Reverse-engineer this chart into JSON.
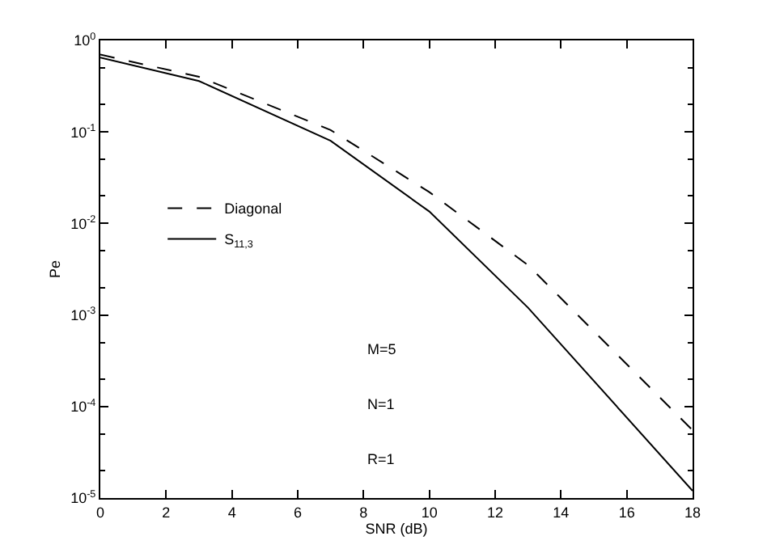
{
  "chart_data": {
    "type": "line",
    "xlabel": "SNR (dB)",
    "ylabel": "Pe",
    "x": [
      0,
      3,
      7,
      10,
      13,
      18
    ],
    "series": [
      {
        "name": "Diagonal",
        "color": "#000000",
        "line_style": "dashed",
        "values": [
          0.7,
          0.4,
          0.105,
          0.022,
          0.0035,
          5.5e-05
        ]
      },
      {
        "name": "S$_{11,3}$",
        "color": "#000000",
        "line_style": "solid",
        "values": [
          0.65,
          0.36,
          0.08,
          0.0135,
          0.0012,
          1.2e-05
        ]
      }
    ],
    "xlim": [
      0,
      18
    ],
    "xticks": [
      0,
      2,
      4,
      6,
      8,
      10,
      12,
      14,
      16,
      18
    ],
    "ylim": [
      1e-05,
      1
    ],
    "log": true,
    "yticks": [
      {
        "value": 1e-05,
        "label": "10$^{-5}$"
      },
      {
        "value": 0.0001,
        "label": "10$^{-4}$"
      },
      {
        "value": 0.001,
        "label": "10$^{-3}$"
      },
      {
        "value": 0.01,
        "label": "10$^{-2}$"
      },
      {
        "value": 0.1,
        "label": "10$^{-1}$"
      },
      {
        "value": 1,
        "label": "10$^{0}$"
      }
    ],
    "grid": false,
    "legend": "left",
    "marker": "none",
    "annotations": [
      "M=5",
      "N=1",
      "R=1"
    ]
  }
}
